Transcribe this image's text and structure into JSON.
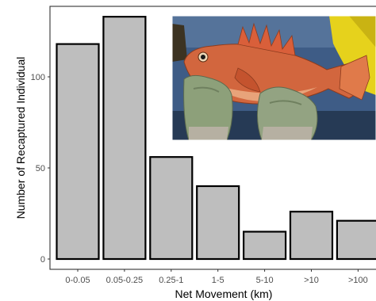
{
  "chart_data": {
    "type": "bar",
    "title": "",
    "xlabel": "Net Movement (km)",
    "ylabel": "Number of Recaptured Individual",
    "categories": [
      "0-0.05",
      "0.05-0.25",
      "0.25-1",
      "1-5",
      "5-10",
      ">10",
      ">100"
    ],
    "values": [
      118,
      133,
      56,
      40,
      15,
      26,
      21
    ],
    "ylim": [
      0,
      140
    ],
    "yticks": [
      0,
      50,
      100
    ],
    "grid": false,
    "bar_fill": "#bebebe",
    "bar_stroke": "#000000"
  },
  "inset_photo": {
    "subject": "rockfish-held-in-gloved-hands",
    "colors": {
      "water": "#3e5c86",
      "fish": "#d2663e",
      "glove": "#8da07a",
      "jacket": "#e6d21c"
    }
  }
}
